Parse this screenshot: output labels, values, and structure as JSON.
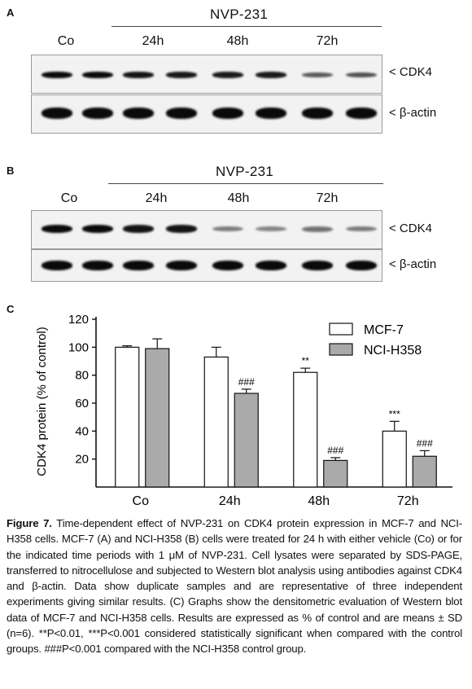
{
  "panel_a": {
    "letter": "A",
    "group_title": "NVP-231",
    "lanes": [
      "Co",
      "24h",
      "48h",
      "72h"
    ],
    "protein_label": "< CDK4",
    "control_label": "< β-actin",
    "cdk4_band_intensity": [
      1.0,
      1.0,
      0.95,
      0.92,
      0.9,
      0.9,
      0.55,
      0.6
    ]
  },
  "panel_b": {
    "letter": "B",
    "group_title": "NVP-231",
    "lanes": [
      "Co",
      "24h",
      "48h",
      "72h"
    ],
    "protein_label": "< CDK4",
    "control_label": "< β-actin",
    "cdk4_band_intensity": [
      1.0,
      1.0,
      0.95,
      0.95,
      0.35,
      0.3,
      0.4,
      0.35
    ]
  },
  "panel_c": {
    "letter": "C"
  },
  "chart_data": {
    "type": "bar",
    "categories": [
      "Co",
      "24h",
      "48h",
      "72h"
    ],
    "series": [
      {
        "name": "MCF-7",
        "color": "#ffffff",
        "values": [
          100,
          93,
          82,
          40
        ],
        "errors": [
          1,
          7,
          3,
          7
        ],
        "annotations": [
          "",
          "",
          "**",
          "***"
        ]
      },
      {
        "name": "NCI-H358",
        "color": "#aaaaaa",
        "values": [
          99,
          67,
          19,
          22
        ],
        "errors": [
          7,
          3,
          2,
          4
        ],
        "annotations": [
          "",
          "###",
          "###",
          "###"
        ]
      }
    ],
    "ylabel": "CDK4 protein (% of control)",
    "ylim": [
      0,
      120
    ],
    "yticks": [
      20,
      40,
      60,
      80,
      100,
      120
    ],
    "legend_position": "top-right"
  },
  "caption": {
    "label": "Figure 7.",
    "text": " Time-dependent effect of NVP-231 on CDK4 protein expression in MCF-7 and NCI-H358 cells. MCF-7 (A) and NCI-H358 (B) cells were treated for 24 h with either vehicle (Co) or for the indicated time periods with 1 μM of NVP-231. Cell lysates were separated by SDS-PAGE, transferred to nitrocellulose and subjected to Western blot analysis using antibodies against CDK4 and β-actin. Data show duplicate samples and are representative of three independent experiments giving similar results. (C) Graphs show the densitometric evaluation of Western blot data of MCF-7 and NCI-H358 cells. Results are expressed as % of control and are means ± SD (n=6). **P<0.01, ***P<0.001 considered statistically significant when compared with the control groups. ###P<0.001 compared with the NCI-H358 control group."
  }
}
